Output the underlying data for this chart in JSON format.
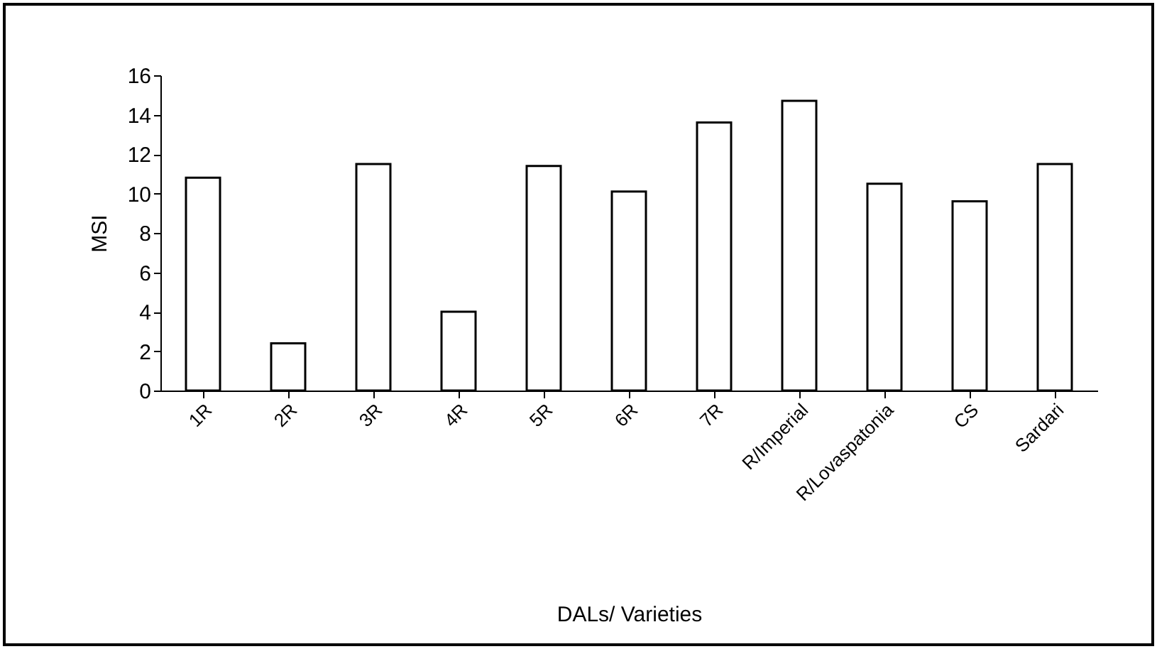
{
  "chart_data": {
    "type": "bar",
    "xlabel": "DALs/ Varieties",
    "ylabel": "MSI",
    "categories": [
      "1R",
      "2R",
      "3R",
      "4R",
      "5R",
      "6R",
      "7R",
      "R/Imperial",
      "R/Lovaspatonia",
      "CS",
      "Sardari"
    ],
    "values": [
      10.8,
      2.4,
      11.5,
      4.0,
      11.4,
      10.1,
      13.6,
      14.7,
      10.5,
      9.6,
      11.5
    ],
    "color": "#ffffff",
    "ylim": [
      0,
      16
    ],
    "yticks": [
      0,
      2,
      4,
      6,
      8,
      10,
      12,
      14,
      16
    ],
    "grid": false
  }
}
